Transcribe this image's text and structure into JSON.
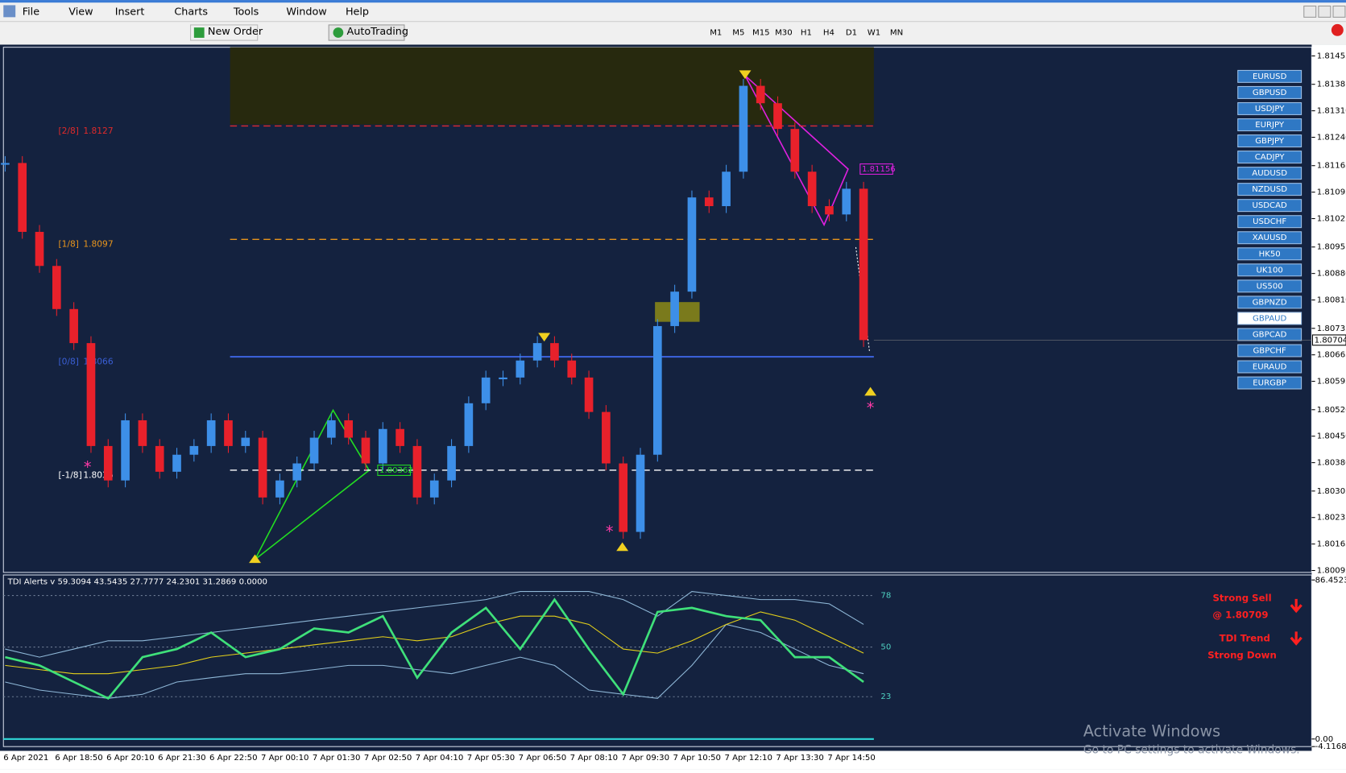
{
  "menu": [
    "File",
    "View",
    "Insert",
    "Charts",
    "Tools",
    "Window",
    "Help"
  ],
  "toolbar": {
    "new_order": "New Order",
    "auto_trading": "AutoTrading",
    "timeframes": [
      "M1",
      "M5",
      "M15",
      "M30",
      "H1",
      "H4",
      "D1",
      "W1",
      "MN"
    ]
  },
  "symbols": [
    "EURUSD",
    "GBPUSD",
    "USDJPY",
    "EURJPY",
    "GBPJPY",
    "CADJPY",
    "AUDUSD",
    "NZDUSD",
    "USDCAD",
    "USDCHF",
    "XAUUSD",
    "HK50",
    "UK100",
    "US500",
    "GBPNZD",
    "GBPAUD",
    "GBPCAD",
    "GBPCHF",
    "EURAUD",
    "EURGBP"
  ],
  "active_symbol": "GBPAUD",
  "time_axis": [
    "6 Apr 2021",
    "6 Apr 18:50",
    "6 Apr 20:10",
    "6 Apr 21:30",
    "6 Apr 22:50",
    "7 Apr 00:10",
    "7 Apr 01:30",
    "7 Apr 02:50",
    "7 Apr 04:10",
    "7 Apr 05:30",
    "7 Apr 06:50",
    "7 Apr 08:10",
    "7 Apr 09:30",
    "7 Apr 10:50",
    "7 Apr 12:10",
    "7 Apr 13:30",
    "7 Apr 14:50"
  ],
  "alerts": {
    "signal": "Strong Sell",
    "price": "@ 1.80709",
    "trend_label": "TDI Trend",
    "trend": "Strong Down"
  },
  "watermark": {
    "title": "Activate Windows",
    "text": "Go to PC settings to activate Windows."
  },
  "chart_data": [
    {
      "type": "candlestick",
      "up_color": "#3d8fe8",
      "down_color": "#e8212b",
      "values": [
        1.81172,
        1.8099,
        1.809,
        1.80786,
        1.80696,
        1.80424,
        1.80333,
        1.80492,
        1.80424,
        1.80356,
        1.80401,
        1.80424,
        1.80492,
        1.80424,
        1.80446,
        1.80288,
        1.80333,
        1.80378,
        1.80446,
        1.80492,
        1.80446,
        1.80378,
        1.80469,
        1.80424,
        1.80288,
        1.80333,
        1.80424,
        1.80537,
        1.80605,
        1.80605,
        1.8065,
        1.80696,
        1.8065,
        1.80605,
        1.80514,
        1.80378,
        1.80197,
        1.80401,
        1.80741,
        1.80832,
        1.81081,
        1.81058,
        1.81149,
        1.81376,
        1.8133,
        1.81262,
        1.81149,
        1.81058,
        1.81036,
        1.81104,
        1.80704
      ],
      "ylim": [
        1.8009,
        1.81478
      ],
      "yticks": [
        1.81455,
        1.8138,
        {
          "value": 1.8131,
          "label": "1.81310"
        },
        {
          "value": 1.8124,
          "label": "1.81240"
        },
        1.81165,
        1.81095,
        1.81025,
        1.8095,
        {
          "value": 1.8088,
          "label": "1.80880"
        },
        {
          "value": 1.8081,
          "label": "1.80810"
        },
        1.80735,
        1.80665,
        1.80595,
        {
          "value": 1.8052,
          "label": "1.80520"
        },
        {
          "value": 1.8045,
          "label": "1.80450"
        },
        {
          "value": 1.8038,
          "label": "1.80380"
        },
        1.80305,
        1.80235,
        1.80165,
        1.80095
      ],
      "levels": [
        {
          "label": "[2/8]",
          "value": 1.8127,
          "color": "#e02a2a"
        },
        {
          "label": "[1/8]",
          "value": 1.8097,
          "color": "#e8951c"
        },
        {
          "label": "[0/8]",
          "value": 1.8066,
          "color": "#3a5fd6"
        },
        {
          "label": "[-1/8]",
          "value": 1.8036,
          "color": "#ffffff"
        }
      ],
      "annotations": [
        {
          "label": "1.80362",
          "color": "#22dd22"
        },
        {
          "label": "1.81156",
          "color": "#e020e0"
        }
      ],
      "current_price": 1.80704
    },
    {
      "type": "line",
      "title": "TDI Alerts v 59.3094 43.5435 27.7777 24.2301 31.2869 0.0000",
      "series": [
        {
          "color": "#8fb8d8",
          "values": [
            48.9,
            44.5,
            48.9,
            53.4,
            53.4,
            55.6,
            57.9,
            60.1,
            62.3,
            64.6,
            66.8,
            69.1,
            71.3,
            73.5,
            75.8,
            80.2,
            80.2,
            80.2,
            75.8,
            66.8,
            80.2,
            78,
            75.8,
            75.8,
            73.5,
            62.3
          ]
        },
        {
          "color": "#8fb8d8",
          "values": [
            31,
            26.6,
            24.3,
            22.1,
            24.3,
            31,
            33.3,
            35.5,
            35.5,
            37.7,
            40,
            40,
            37.7,
            35.5,
            40,
            44.5,
            40,
            26.6,
            24.3,
            22.1,
            40,
            62.3,
            57.9,
            48.9,
            40,
            35.5
          ]
        },
        {
          "color": "#e6d21a",
          "values": [
            40,
            37.7,
            35.5,
            35.5,
            37.7,
            40,
            44.5,
            46.7,
            48.9,
            51.2,
            53.4,
            55.6,
            53.4,
            55.6,
            62.3,
            66.8,
            66.8,
            62.3,
            48.9,
            46.7,
            53.4,
            62.3,
            69.1,
            64.6,
            55.6,
            46.7
          ]
        },
        {
          "color": "#3fe07a",
          "values": [
            44.5,
            40,
            31,
            22.1,
            44.5,
            48.9,
            57.9,
            44.5,
            48.9,
            60.1,
            57.9,
            66.8,
            33.3,
            57.9,
            71.3,
            48.9,
            75.8,
            48.9,
            24.3,
            69.1,
            71.3,
            66.8,
            64.6,
            44.5,
            44.5,
            31
          ]
        }
      ],
      "levels": [
        78,
        50,
        23
      ],
      "ylim": [
        -4.1168,
        89.18
      ],
      "yticks": [
        86.4523,
        {
          "value": 0,
          "label": "0.00"
        },
        -4.1168
      ]
    }
  ]
}
